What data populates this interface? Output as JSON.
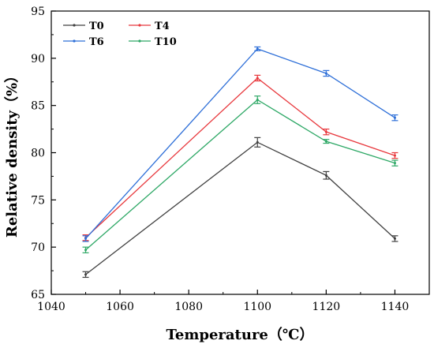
{
  "chart_data": {
    "type": "line",
    "title": "",
    "xlabel": "Temperature（℃）",
    "ylabel": "Relative density（%）",
    "xlim": [
      1040,
      1150
    ],
    "ylim": [
      65,
      95
    ],
    "x_ticks": [
      1040,
      1060,
      1080,
      1100,
      1120,
      1140
    ],
    "y_ticks": [
      65,
      70,
      75,
      80,
      85,
      90,
      95
    ],
    "grid": false,
    "legend_position": "top-left",
    "x": [
      1050,
      1100,
      1120,
      1140
    ],
    "series": [
      {
        "name": "T0",
        "color": "#404040",
        "values": [
          67.1,
          81.1,
          77.6,
          70.9
        ],
        "errors": [
          0.3,
          0.5,
          0.4,
          0.3
        ]
      },
      {
        "name": "T4",
        "color": "#e8383d",
        "values": [
          71.0,
          87.9,
          82.2,
          79.7
        ],
        "errors": [
          0.3,
          0.3,
          0.3,
          0.3
        ]
      },
      {
        "name": "T6",
        "color": "#2e6fd8",
        "values": [
          70.9,
          91.0,
          88.4,
          83.7
        ],
        "errors": [
          0.3,
          0.2,
          0.3,
          0.3
        ]
      },
      {
        "name": "T10",
        "color": "#2ea866",
        "values": [
          69.7,
          85.6,
          81.2,
          78.9
        ],
        "errors": [
          0.3,
          0.4,
          0.2,
          0.3
        ]
      }
    ]
  }
}
